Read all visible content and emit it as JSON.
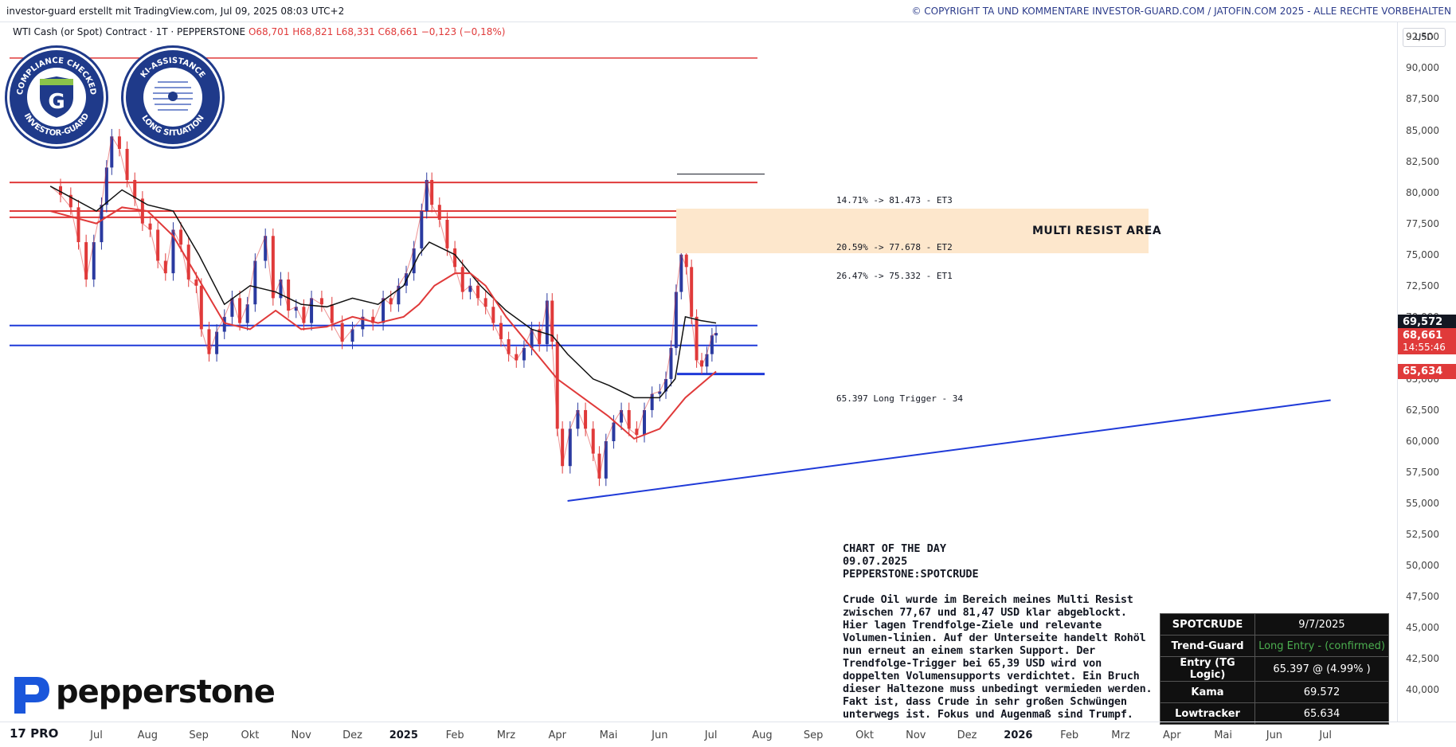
{
  "header": {
    "left_text": "investor-guard erstellt mit TradingView.com, Jul 09, 2025 08:03 UTC+2",
    "right_text": "© COPYRIGHT TA UND KOMMENTARE INVESTOR-GUARD.COM / JATOFIN.COM 2025 - ALLE RECHTE VORBEHALTEN"
  },
  "symbol": {
    "name": "WTI Cash (or Spot) Contract · 1T · PEPPERSTONE",
    "ohlc": "O68,701  H68,821  L68,331  C68,661  −0,123 (−0,18%)"
  },
  "seals": [
    {
      "top": "COMPLIANCE CHECKED",
      "bottom": "INVESTOR-GUARD",
      "center": "G"
    },
    {
      "top": "KI-ASSISTANCE",
      "bottom": "LONG SITUATION",
      "center": ""
    }
  ],
  "currency": "USD",
  "price_tags": [
    {
      "label": "69,572",
      "color": "#131722"
    },
    {
      "label": "68,661",
      "sub": "14:55:46",
      "color": "#e03a3a"
    },
    {
      "label": "65,634",
      "color": "#e03a3a"
    }
  ],
  "annotations": {
    "et3": "14.71% -> 81.473 - ET3",
    "et2": "20.59% -> 77.678 - ET2",
    "et1": "26.47% -> 75.332 - ET1",
    "trigger": "65.397  Long Trigger - 34",
    "resist": "MULTI RESIST AREA"
  },
  "chart_of_day": {
    "title": "CHART OF THE DAY",
    "date": "09.07.2025",
    "ticker": "PEPPERSTONE:SPOTCRUDE",
    "text": "Crude Oil wurde im Bereich meines Multi Resist zwischen 77,67 und 81,47 USD klar abgeblockt. Hier lagen Trendfolge-Ziele und relevante Volumen-linien. Auf der Unterseite handelt Rohöl nun erneut an einem starken Support. Der Trendfolge-Trigger bei 65,39 USD wird von doppelten Volumensupports verdichtet. Ein Bruch dieser Haltezone muss unbedingt vermieden werden. Fakt ist, dass Crude in sehr großen Schwüngen unterwegs ist. Fokus und Augenmaß sind Trumpf."
  },
  "signal_table": {
    "rows": [
      {
        "k": "SPOTCRUDE",
        "v": "9/7/2025"
      },
      {
        "k": "Trend-Guard",
        "v": "Long Entry - (confirmed)",
        "highlight": true
      },
      {
        "k": "Entry (TG Logic)",
        "v": "65.397 @ (4.99% )"
      },
      {
        "k": "Kama",
        "v": "69.572"
      },
      {
        "k": "Lowtracker",
        "v": "65.634"
      }
    ]
  },
  "brand": {
    "name": "pepperstone",
    "tv": "17 PRO"
  },
  "colors": {
    "up": "#2a3aa0",
    "down": "#e03a3a",
    "kama": "#111111",
    "lowtracker": "#e03a3a",
    "support": "#1f3ad8",
    "resist": "#e03a3a"
  },
  "chart_data": {
    "type": "line",
    "title": "WTI Cash (or Spot) Contract · 1T · PEPPERSTONE",
    "xlabel": "",
    "ylabel": "",
    "ylim": [
      40,
      95
    ],
    "y_ticks": [
      "40,000",
      "42,500",
      "45,000",
      "47,500",
      "50,000",
      "52,500",
      "55,000",
      "57,500",
      "60,000",
      "62,500",
      "65,000",
      "67,500",
      "70,000",
      "72,500",
      "75,000",
      "77,500",
      "80,000",
      "82,500",
      "85,000",
      "87,500",
      "90,000",
      "92,500"
    ],
    "x_ticks": [
      {
        "label": "Jul",
        "t": 0
      },
      {
        "label": "Aug",
        "t": 1
      },
      {
        "label": "Sep",
        "t": 2
      },
      {
        "label": "Okt",
        "t": 3
      },
      {
        "label": "Nov",
        "t": 4
      },
      {
        "label": "Dez",
        "t": 5
      },
      {
        "label": "2025",
        "t": 6,
        "bold": true
      },
      {
        "label": "Feb",
        "t": 7
      },
      {
        "label": "Mrz",
        "t": 8
      },
      {
        "label": "Apr",
        "t": 9
      },
      {
        "label": "Mai",
        "t": 10
      },
      {
        "label": "Jun",
        "t": 11
      },
      {
        "label": "Jul",
        "t": 12
      },
      {
        "label": "Aug",
        "t": 13
      },
      {
        "label": "Sep",
        "t": 14
      },
      {
        "label": "Okt",
        "t": 15
      },
      {
        "label": "Nov",
        "t": 16
      },
      {
        "label": "Dez",
        "t": 17
      },
      {
        "label": "2026",
        "t": 18,
        "bold": true
      },
      {
        "label": "Feb",
        "t": 19
      },
      {
        "label": "Mrz",
        "t": 20
      },
      {
        "label": "Apr",
        "t": 21
      },
      {
        "label": "Mai",
        "t": 22
      },
      {
        "label": "Jun",
        "t": 23
      },
      {
        "label": "Jul",
        "t": 24
      }
    ],
    "price": [
      [
        -0.9,
        80.5
      ],
      [
        -0.7,
        79.8
      ],
      [
        -0.5,
        78.8
      ],
      [
        -0.35,
        76
      ],
      [
        -0.2,
        73
      ],
      [
        -0.05,
        76
      ],
      [
        0.1,
        79
      ],
      [
        0.2,
        82
      ],
      [
        0.3,
        84.5
      ],
      [
        0.45,
        83.5
      ],
      [
        0.6,
        81
      ],
      [
        0.75,
        79.5
      ],
      [
        0.9,
        77.5
      ],
      [
        1.05,
        77
      ],
      [
        1.2,
        74.5
      ],
      [
        1.35,
        73.5
      ],
      [
        1.5,
        77
      ],
      [
        1.65,
        75.8
      ],
      [
        1.8,
        73
      ],
      [
        1.95,
        72.5
      ],
      [
        2.05,
        69
      ],
      [
        2.2,
        67
      ],
      [
        2.35,
        68.8
      ],
      [
        2.5,
        70
      ],
      [
        2.65,
        71.5
      ],
      [
        2.8,
        69.5
      ],
      [
        2.95,
        71
      ],
      [
        3.1,
        74.5
      ],
      [
        3.3,
        76.5
      ],
      [
        3.45,
        71.5
      ],
      [
        3.6,
        73
      ],
      [
        3.75,
        70.5
      ],
      [
        3.9,
        70.8
      ],
      [
        4.05,
        69.5
      ],
      [
        4.2,
        71.5
      ],
      [
        4.4,
        71
      ],
      [
        4.6,
        69.5
      ],
      [
        4.8,
        68
      ],
      [
        5.0,
        69
      ],
      [
        5.2,
        70
      ],
      [
        5.4,
        69.5
      ],
      [
        5.6,
        71.5
      ],
      [
        5.75,
        71
      ],
      [
        5.9,
        72.5
      ],
      [
        6.05,
        73.5
      ],
      [
        6.2,
        75.5
      ],
      [
        6.35,
        78.5
      ],
      [
        6.45,
        81
      ],
      [
        6.55,
        79
      ],
      [
        6.7,
        77.8
      ],
      [
        6.85,
        75.5
      ],
      [
        7.0,
        74
      ],
      [
        7.15,
        72
      ],
      [
        7.3,
        72.5
      ],
      [
        7.45,
        71.5
      ],
      [
        7.6,
        70.8
      ],
      [
        7.75,
        69.5
      ],
      [
        7.9,
        68.2
      ],
      [
        8.05,
        67
      ],
      [
        8.2,
        66.5
      ],
      [
        8.35,
        67.5
      ],
      [
        8.5,
        69
      ],
      [
        8.65,
        67.8
      ],
      [
        8.8,
        71.3
      ],
      [
        8.9,
        68
      ],
      [
        9.0,
        61
      ],
      [
        9.1,
        58
      ],
      [
        9.25,
        61
      ],
      [
        9.4,
        62.5
      ],
      [
        9.55,
        61
      ],
      [
        9.7,
        59
      ],
      [
        9.82,
        57
      ],
      [
        9.95,
        60
      ],
      [
        10.1,
        61.5
      ],
      [
        10.25,
        62.5
      ],
      [
        10.4,
        61
      ],
      [
        10.55,
        60.5
      ],
      [
        10.7,
        62.5
      ],
      [
        10.85,
        63.8
      ],
      [
        11.0,
        64
      ],
      [
        11.12,
        65
      ],
      [
        11.22,
        67.5
      ],
      [
        11.32,
        72
      ],
      [
        11.42,
        75
      ],
      [
        11.52,
        74
      ],
      [
        11.62,
        70
      ],
      [
        11.72,
        66.5
      ],
      [
        11.82,
        66
      ],
      [
        11.92,
        67
      ],
      [
        12.02,
        68.5
      ],
      [
        12.1,
        68.7
      ]
    ],
    "kama": [
      [
        -0.9,
        80.5
      ],
      [
        0.0,
        78.5
      ],
      [
        0.5,
        80.2
      ],
      [
        1.0,
        79
      ],
      [
        1.5,
        78.5
      ],
      [
        2.0,
        75
      ],
      [
        2.5,
        71
      ],
      [
        3.0,
        72.5
      ],
      [
        3.5,
        72
      ],
      [
        4.0,
        71
      ],
      [
        4.5,
        70.8
      ],
      [
        5.0,
        71.5
      ],
      [
        5.5,
        71
      ],
      [
        6.0,
        72.5
      ],
      [
        6.3,
        75
      ],
      [
        6.5,
        76
      ],
      [
        7.0,
        75
      ],
      [
        7.5,
        72.5
      ],
      [
        8.0,
        70.5
      ],
      [
        8.5,
        69
      ],
      [
        8.9,
        68.5
      ],
      [
        9.2,
        67
      ],
      [
        9.7,
        65
      ],
      [
        10.0,
        64.5
      ],
      [
        10.5,
        63.5
      ],
      [
        11.0,
        63.5
      ],
      [
        11.3,
        65
      ],
      [
        11.5,
        70
      ],
      [
        11.8,
        69.7
      ],
      [
        12.1,
        69.5
      ]
    ],
    "lowtracker": [
      [
        -0.9,
        78.5
      ],
      [
        0,
        77.5
      ],
      [
        0.5,
        78.8
      ],
      [
        1.0,
        78.5
      ],
      [
        1.5,
        76.5
      ],
      [
        2.0,
        73
      ],
      [
        2.5,
        69.5
      ],
      [
        3.0,
        69
      ],
      [
        3.5,
        70.5
      ],
      [
        4.0,
        69
      ],
      [
        4.5,
        69.2
      ],
      [
        5.0,
        70
      ],
      [
        5.5,
        69.5
      ],
      [
        6.0,
        70
      ],
      [
        6.3,
        71
      ],
      [
        6.6,
        72.5
      ],
      [
        7.0,
        73.5
      ],
      [
        7.3,
        73.5
      ],
      [
        7.6,
        72.5
      ],
      [
        8.0,
        70
      ],
      [
        8.5,
        67.5
      ],
      [
        9.0,
        65
      ],
      [
        9.5,
        63.5
      ],
      [
        10.0,
        62
      ],
      [
        10.5,
        60.2
      ],
      [
        11.0,
        61
      ],
      [
        11.5,
        63.5
      ],
      [
        12.1,
        65.6
      ]
    ],
    "levels": {
      "resist_top": 90.8,
      "resist_lines": [
        80.8,
        78.5,
        78.0
      ],
      "support_lines": [
        69.3,
        67.7
      ],
      "trigger": 65.4,
      "et3": 81.47,
      "et2": 77.68,
      "et1": 75.33
    },
    "trendline": [
      [
        9.2,
        55.2
      ],
      [
        24.1,
        63.3
      ]
    ]
  }
}
